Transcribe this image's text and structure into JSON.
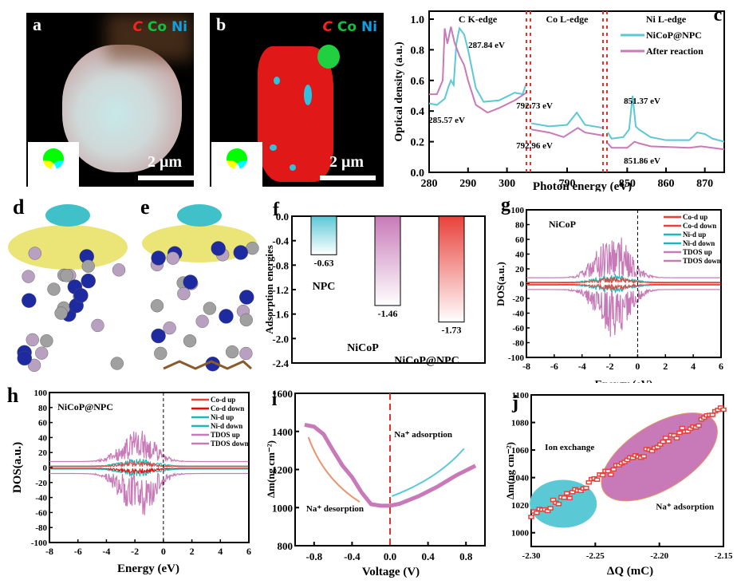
{
  "panels": {
    "a": {
      "label": "a",
      "legend": [
        "C",
        "Co",
        "Ni"
      ],
      "legend_colors": [
        "#ff2020",
        "#10c040",
        "#10a0e0"
      ],
      "scale": "2 μm"
    },
    "b": {
      "label": "b",
      "legend": [
        "C",
        "Co",
        "Ni"
      ],
      "legend_colors": [
        "#ff2020",
        "#10c040",
        "#10a0e0"
      ],
      "scale": "2 μm"
    },
    "d": {
      "label": "d"
    },
    "e": {
      "label": "e"
    }
  },
  "chart_data": [
    {
      "id": "c",
      "label": "c",
      "type": "line",
      "title": "",
      "xlabel": "Photon energy (eV)",
      "ylabel": "Optical density (a.u.)",
      "ylim": [
        0.0,
        1.0
      ],
      "yticks": [
        "0.0",
        "0.2",
        "0.4",
        "0.6",
        "0.8",
        "1.0"
      ],
      "segments": [
        {
          "name": "C K-edge",
          "xlim": [
            280,
            305
          ],
          "xticks": [
            "280",
            "290",
            "300"
          ]
        },
        {
          "name": "Co L-edge",
          "xlim": [
            780,
            800
          ],
          "xticks": [
            "790"
          ]
        },
        {
          "name": "Ni L-edge",
          "xlim": [
            845,
            875
          ],
          "xticks": [
            "850",
            "860",
            "870"
          ]
        }
      ],
      "series": [
        {
          "name": "NiCoP@NPC",
          "color": "#5bc8d6",
          "seg1": [
            [
              280,
              0.45
            ],
            [
              282,
              0.44
            ],
            [
              284,
              0.48
            ],
            [
              285,
              0.56
            ],
            [
              285.6,
              0.6
            ],
            [
              286.3,
              0.57
            ],
            [
              287,
              0.84
            ],
            [
              287.8,
              0.94
            ],
            [
              289,
              0.9
            ],
            [
              290,
              0.8
            ],
            [
              292,
              0.55
            ],
            [
              294,
              0.46
            ],
            [
              298,
              0.47
            ],
            [
              302,
              0.52
            ],
            [
              304,
              0.51
            ],
            [
              305,
              0.58
            ]
          ],
          "seg2": [
            [
              780,
              0.32
            ],
            [
              785,
              0.3
            ],
            [
              790,
              0.31
            ],
            [
              792.7,
              0.39
            ],
            [
              795,
              0.31
            ],
            [
              800,
              0.29
            ]
          ],
          "seg3": [
            [
              845,
              0.26
            ],
            [
              846,
              0.22
            ],
            [
              849,
              0.23
            ],
            [
              850.5,
              0.28
            ],
            [
              851.4,
              0.5
            ],
            [
              852.2,
              0.3
            ],
            [
              853,
              0.28
            ],
            [
              856,
              0.23
            ],
            [
              860,
              0.21
            ],
            [
              866,
              0.21
            ],
            [
              868,
              0.26
            ],
            [
              870,
              0.25
            ],
            [
              872,
              0.22
            ],
            [
              875,
              0.2
            ]
          ]
        },
        {
          "name": "After reaction",
          "color": "#c87ab8",
          "seg1": [
            [
              280,
              0.51
            ],
            [
              282,
              0.51
            ],
            [
              283.5,
              0.6
            ],
            [
              284,
              0.94
            ],
            [
              284.7,
              0.84
            ],
            [
              285.6,
              0.95
            ],
            [
              286.5,
              0.85
            ],
            [
              287.8,
              0.76
            ],
            [
              289,
              0.7
            ],
            [
              290,
              0.6
            ],
            [
              292,
              0.44
            ],
            [
              295,
              0.39
            ],
            [
              298,
              0.42
            ],
            [
              302,
              0.47
            ],
            [
              305,
              0.52
            ]
          ],
          "seg2": [
            [
              780,
              0.28
            ],
            [
              785,
              0.26
            ],
            [
              789,
              0.23
            ],
            [
              793,
              0.29
            ],
            [
              795,
              0.26
            ],
            [
              800,
              0.24
            ]
          ],
          "seg3": [
            [
              845,
              0.19
            ],
            [
              846,
              0.16
            ],
            [
              850,
              0.16
            ],
            [
              851.9,
              0.2
            ],
            [
              853,
              0.19
            ],
            [
              856,
              0.17
            ],
            [
              866,
              0.16
            ],
            [
              869,
              0.17
            ],
            [
              875,
              0.15
            ]
          ]
        }
      ],
      "annotations": [
        "287.84 eV",
        "285.57 eV",
        "792.73 eV",
        "792.96 eV",
        "851.37 eV",
        "851.86 eV"
      ],
      "legend": [
        "NiCoP@NPC",
        "After reaction"
      ],
      "legend_position": "top-right"
    },
    {
      "id": "f",
      "label": "f",
      "type": "bar",
      "title": "",
      "xlabel": "",
      "ylabel": "Adsorption energies",
      "ylim": [
        -2.4,
        0.0
      ],
      "yticks": [
        "0.0",
        "-0.4",
        "-0.8",
        "-1.2",
        "-1.6",
        "-2.0",
        "-2.4"
      ],
      "categories": [
        "NPC",
        "NiCoP",
        "NiCoP@NPC"
      ],
      "values": [
        -0.63,
        -1.46,
        -1.73
      ],
      "value_labels": [
        "-0.63",
        "-1.46",
        "-1.73"
      ],
      "colors": [
        "#5bc8d6",
        "#c87ab8",
        "#e8413a"
      ]
    },
    {
      "id": "g",
      "label": "g",
      "type": "line",
      "title": "NiCoP",
      "xlabel": "Energy (eV)",
      "ylabel": "DOS(a.u.)",
      "xlim": [
        -8,
        6
      ],
      "ylim": [
        -100,
        100
      ],
      "xticks": [
        "-8",
        "-6",
        "-4",
        "-2",
        "0",
        "2",
        "4",
        "6"
      ],
      "yticks": [
        "100",
        "80",
        "60",
        "40",
        "20",
        "0",
        "-20",
        "-40",
        "-60",
        "-80",
        "-100"
      ],
      "fermi_level": 0,
      "legend": [
        "Co-d up",
        "Co-d down",
        "Ni-d up",
        "Ni-d down",
        "TDOS up",
        "TDOS down"
      ],
      "legend_colors": [
        "#e8413a",
        "#e8413a",
        "#1fb8b8",
        "#1fb8b8",
        "#c87ab8",
        "#c87ab8"
      ],
      "tdos_peak_up": 65,
      "tdos_peak_down": -68
    },
    {
      "id": "h",
      "label": "h",
      "type": "line",
      "title": "NiCoP@NPC",
      "xlabel": "Energy (eV)",
      "ylabel": "DOS(a.u.)",
      "xlim": [
        -8,
        6
      ],
      "ylim": [
        -100,
        100
      ],
      "xticks": [
        "-8",
        "-6",
        "-4",
        "-2",
        "0",
        "2",
        "4",
        "6"
      ],
      "yticks": [
        "100",
        "80",
        "60",
        "40",
        "20",
        "0",
        "-20",
        "-40",
        "-60",
        "-80",
        "-100"
      ],
      "fermi_level": 0,
      "legend": [
        "Co-d up",
        "Co-d down",
        "Ni-d up",
        "Ni-d down",
        "TDOS up",
        "TDOS down"
      ],
      "legend_colors": [
        "#e8413a",
        "#ff0000",
        "#1fb8b8",
        "#1fb8b8",
        "#c87ab8",
        "#c87ab8"
      ],
      "tdos_peak_up": 45,
      "tdos_peak_down": -66
    },
    {
      "id": "i",
      "label": "i",
      "type": "line",
      "xlabel": "Voltage (V)",
      "ylabel": "Δm(ng cm⁻²)",
      "xlim": [
        -1.0,
        1.0
      ],
      "ylim": [
        800,
        1600
      ],
      "xticks": [
        "-0.8",
        "-0.4",
        "0.0",
        "0.4",
        "0.8"
      ],
      "yticks": [
        "1600",
        "1400",
        "1200",
        "1000",
        "800"
      ],
      "series": [
        {
          "name": "Δm",
          "color": "#c87ab8",
          "points": [
            [
              -0.9,
              1435
            ],
            [
              -0.8,
              1425
            ],
            [
              -0.7,
              1385
            ],
            [
              -0.6,
              1300
            ],
            [
              -0.5,
              1220
            ],
            [
              -0.4,
              1160
            ],
            [
              -0.3,
              1080
            ],
            [
              -0.2,
              1018
            ],
            [
              -0.1,
              1010
            ],
            [
              0.0,
              1010
            ],
            [
              0.1,
              1020
            ],
            [
              0.2,
              1040
            ],
            [
              0.3,
              1060
            ],
            [
              0.4,
              1085
            ],
            [
              0.5,
              1110
            ],
            [
              0.6,
              1140
            ],
            [
              0.7,
              1170
            ],
            [
              0.8,
              1195
            ],
            [
              0.9,
              1220
            ]
          ]
        }
      ],
      "annotations": [
        "Na⁺ adsorption",
        "Na⁺ desorption"
      ],
      "vline": 0.0
    },
    {
      "id": "j",
      "label": "j",
      "type": "scatter",
      "xlabel": "ΔQ (mC)",
      "ylabel": "Δm(ng cm⁻²)",
      "xlim": [
        -2.3,
        -2.15
      ],
      "ylim": [
        990,
        1100
      ],
      "xticks": [
        "-2.30",
        "-2.25",
        "-2.20",
        "-2.15"
      ],
      "yticks": [
        "1100",
        "1080",
        "1060",
        "1040",
        "1020",
        "1000"
      ],
      "series": [
        {
          "name": "Δm vs ΔQ",
          "color": "#e8413a",
          "x_start": -2.3,
          "x_end": -2.15,
          "y_start": 1012,
          "y_end": 1090
        }
      ],
      "regions": [
        {
          "name": "Ion exchange",
          "color": "#5bc8d6"
        },
        {
          "name": "Na⁺ adsorption",
          "color": "#c87ab8"
        }
      ],
      "annotations": [
        "Ion exchange",
        "Na⁺ adsorption"
      ]
    }
  ]
}
